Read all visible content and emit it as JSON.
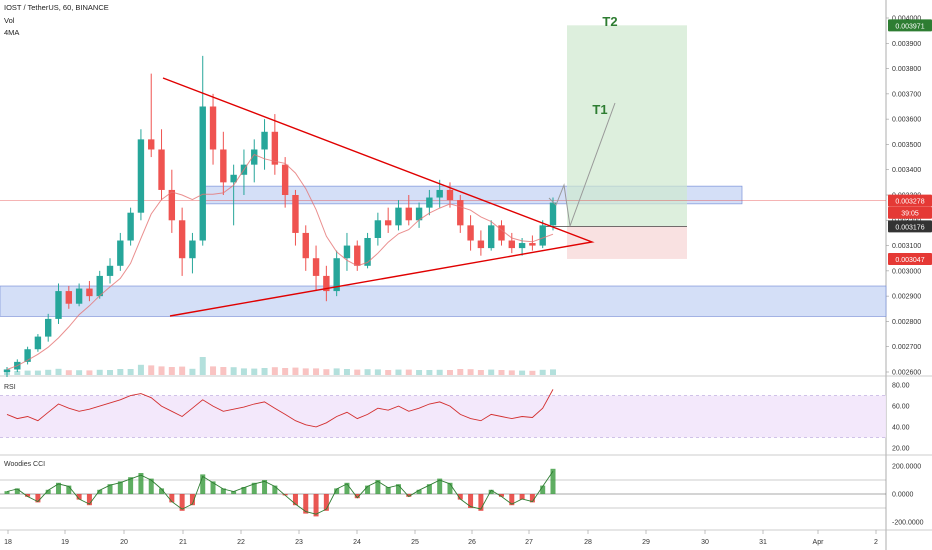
{
  "header": {
    "symbol": "IOST / TetherUS, 60, BINANCE",
    "vol": "Vol",
    "ma": "4MA"
  },
  "colors": {
    "up": "#26a69a",
    "down": "#ef5350",
    "triangle": "#e00000",
    "zone_fill": "#c9d7f5",
    "zone_stroke": "#7d93d9",
    "rsi_line": "#d32f2f",
    "rsi_band": "#f2e6fb",
    "cci_line": "#2e7d32",
    "target_green": "#2e7d32",
    "price_red": "#e53935",
    "current_blue": "#2962ff"
  },
  "chart_data": {
    "type": "candlestick",
    "y_axis": {
      "min": 0.0026,
      "max": 0.004,
      "ticks": [
        "0.002600",
        "0.002700",
        "0.002800",
        "0.002900",
        "0.003000",
        "0.003100",
        "0.003200",
        "0.003300",
        "0.003400",
        "0.003500",
        "0.003600",
        "0.003700",
        "0.003800",
        "0.003900",
        "0.004000"
      ]
    },
    "x_axis": {
      "ticks": [
        "18",
        "19",
        "20",
        "21",
        "22",
        "23",
        "24",
        "25",
        "26",
        "27",
        "28",
        "29",
        "30",
        "31",
        "Apr",
        "2"
      ]
    },
    "price_labels": [
      {
        "text": "0.003971",
        "value": 0.003971,
        "color": "#2e7d32"
      },
      {
        "text": "0.003278",
        "value": 0.003278,
        "color": "#e53935"
      },
      {
        "text": "39:05",
        "value": 0.00323,
        "color": "#e53935"
      },
      {
        "text": "0.003176",
        "value": 0.003176,
        "color": "#333333"
      },
      {
        "text": "0.003047",
        "value": 0.003047,
        "color": "#e53935"
      }
    ],
    "annotations": [
      "T1",
      "T2"
    ],
    "candles": [
      [
        0.0026,
        0.00262,
        0.00258,
        0.00261
      ],
      [
        0.00261,
        0.00265,
        0.0026,
        0.00264
      ],
      [
        0.00264,
        0.0027,
        0.00263,
        0.00269
      ],
      [
        0.00269,
        0.00275,
        0.00268,
        0.00274
      ],
      [
        0.00274,
        0.00283,
        0.00272,
        0.00281
      ],
      [
        0.00281,
        0.00295,
        0.00279,
        0.00292
      ],
      [
        0.00292,
        0.00294,
        0.00285,
        0.00287
      ],
      [
        0.00287,
        0.00295,
        0.00286,
        0.00293
      ],
      [
        0.00293,
        0.00296,
        0.00288,
        0.0029
      ],
      [
        0.0029,
        0.003,
        0.00289,
        0.00298
      ],
      [
        0.00298,
        0.00305,
        0.00295,
        0.00302
      ],
      [
        0.00302,
        0.00315,
        0.003,
        0.00312
      ],
      [
        0.00312,
        0.00325,
        0.0031,
        0.00323
      ],
      [
        0.00323,
        0.00356,
        0.0032,
        0.00352
      ],
      [
        0.00352,
        0.00378,
        0.00345,
        0.00348
      ],
      [
        0.00348,
        0.00356,
        0.00328,
        0.00332
      ],
      [
        0.00332,
        0.0034,
        0.00315,
        0.0032
      ],
      [
        0.0032,
        0.00325,
        0.00298,
        0.00305
      ],
      [
        0.00305,
        0.00315,
        0.00299,
        0.00312
      ],
      [
        0.00312,
        0.00385,
        0.0031,
        0.00365
      ],
      [
        0.00365,
        0.0037,
        0.00342,
        0.00348
      ],
      [
        0.00348,
        0.00355,
        0.0033,
        0.00335
      ],
      [
        0.00335,
        0.00342,
        0.00318,
        0.00338
      ],
      [
        0.00338,
        0.00348,
        0.0033,
        0.00342
      ],
      [
        0.00342,
        0.00352,
        0.00335,
        0.00348
      ],
      [
        0.00348,
        0.0036,
        0.0034,
        0.00355
      ],
      [
        0.00355,
        0.00362,
        0.00338,
        0.00342
      ],
      [
        0.00342,
        0.00345,
        0.00325,
        0.0033
      ],
      [
        0.0033,
        0.00332,
        0.0031,
        0.00315
      ],
      [
        0.00315,
        0.00318,
        0.003,
        0.00305
      ],
      [
        0.00305,
        0.0031,
        0.00292,
        0.00298
      ],
      [
        0.00298,
        0.00302,
        0.00288,
        0.00292
      ],
      [
        0.00292,
        0.00308,
        0.0029,
        0.00305
      ],
      [
        0.00305,
        0.00315,
        0.003,
        0.0031
      ],
      [
        0.0031,
        0.00312,
        0.003,
        0.00302
      ],
      [
        0.00302,
        0.00315,
        0.00301,
        0.00313
      ],
      [
        0.00313,
        0.00323,
        0.0031,
        0.0032
      ],
      [
        0.0032,
        0.00325,
        0.00315,
        0.00318
      ],
      [
        0.00318,
        0.00328,
        0.00316,
        0.00325
      ],
      [
        0.00325,
        0.0033,
        0.00318,
        0.0032
      ],
      [
        0.0032,
        0.00327,
        0.00317,
        0.00325
      ],
      [
        0.00325,
        0.00332,
        0.00322,
        0.00329
      ],
      [
        0.00329,
        0.00336,
        0.00325,
        0.00332
      ],
      [
        0.00332,
        0.00335,
        0.00325,
        0.00328
      ],
      [
        0.00328,
        0.0033,
        0.00315,
        0.00318
      ],
      [
        0.00318,
        0.00322,
        0.00308,
        0.00312
      ],
      [
        0.00312,
        0.00316,
        0.00306,
        0.00309
      ],
      [
        0.00309,
        0.0032,
        0.00308,
        0.00318
      ],
      [
        0.00318,
        0.0032,
        0.0031,
        0.00312
      ],
      [
        0.00312,
        0.00315,
        0.00307,
        0.00309
      ],
      [
        0.00309,
        0.00313,
        0.00306,
        0.00311
      ],
      [
        0.00311,
        0.00314,
        0.00308,
        0.0031
      ],
      [
        0.0031,
        0.0032,
        0.00309,
        0.00318
      ],
      [
        0.00318,
        0.00329,
        0.00316,
        0.00327
      ]
    ]
  },
  "indicators": {
    "rsi": {
      "title": "RSI",
      "ticks": [
        "80.00",
        "60.00",
        "40.00",
        "20.00"
      ],
      "values": [
        52,
        48,
        50,
        46,
        54,
        62,
        58,
        55,
        57,
        60,
        63,
        66,
        70,
        72,
        68,
        60,
        55,
        50,
        58,
        66,
        60,
        55,
        57,
        59,
        62,
        64,
        58,
        52,
        46,
        42,
        40,
        44,
        50,
        54,
        48,
        52,
        58,
        56,
        60,
        55,
        58,
        62,
        64,
        60,
        52,
        48,
        46,
        52,
        50,
        48,
        50,
        49,
        58,
        76
      ]
    },
    "cci": {
      "title": "Woodies CCI",
      "ticks": [
        "200.0000",
        "0.0000",
        "-200.0000"
      ],
      "values": [
        20,
        40,
        -20,
        -60,
        30,
        80,
        60,
        -40,
        -80,
        30,
        70,
        90,
        120,
        150,
        110,
        40,
        -60,
        -120,
        -80,
        140,
        90,
        40,
        20,
        50,
        80,
        100,
        60,
        -10,
        -80,
        -140,
        -160,
        -120,
        40,
        80,
        -30,
        60,
        100,
        50,
        70,
        -20,
        30,
        70,
        110,
        80,
        -40,
        -100,
        -120,
        30,
        -20,
        -80,
        -40,
        -60,
        60,
        180
      ]
    }
  }
}
